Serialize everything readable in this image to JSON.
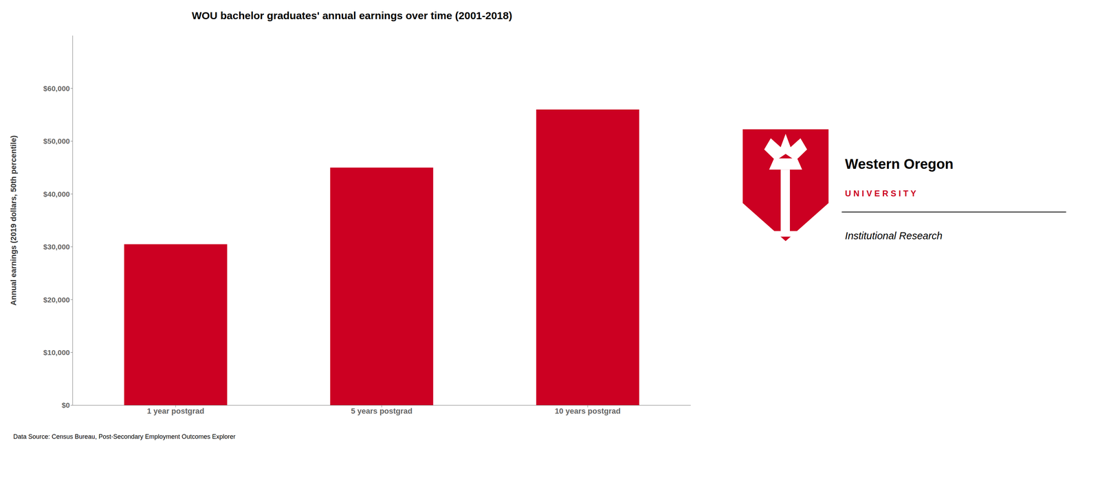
{
  "chart_data": {
    "type": "bar",
    "title": "WOU bachelor graduates' annual earnings over time (2001-2018)",
    "categories": [
      "1 year postgrad",
      "5 years postgrad",
      "10 years postgrad"
    ],
    "values": [
      30500,
      45000,
      56000
    ],
    "color": "#CC0022",
    "ylabel": "Annual earnings (2019 dollars, 50th percentile)",
    "ylim": [
      0,
      70000
    ],
    "yticks": [
      {
        "value": 0,
        "label": "$0"
      },
      {
        "value": 10000,
        "label": "$10,000"
      },
      {
        "value": 20000,
        "label": "$20,000"
      },
      {
        "value": 30000,
        "label": "$30,000"
      },
      {
        "value": 40000,
        "label": "$40,000"
      },
      {
        "value": 50000,
        "label": "$50,000"
      },
      {
        "value": 60000,
        "label": "$60,000"
      }
    ],
    "grid": false,
    "annotations": [
      "Data Source: Census Bureau, Post-Secondary Employment Outcomes Explorer",
      "Western Oregon",
      "U N I V E R S I T Y",
      "Institutional Research"
    ]
  }
}
